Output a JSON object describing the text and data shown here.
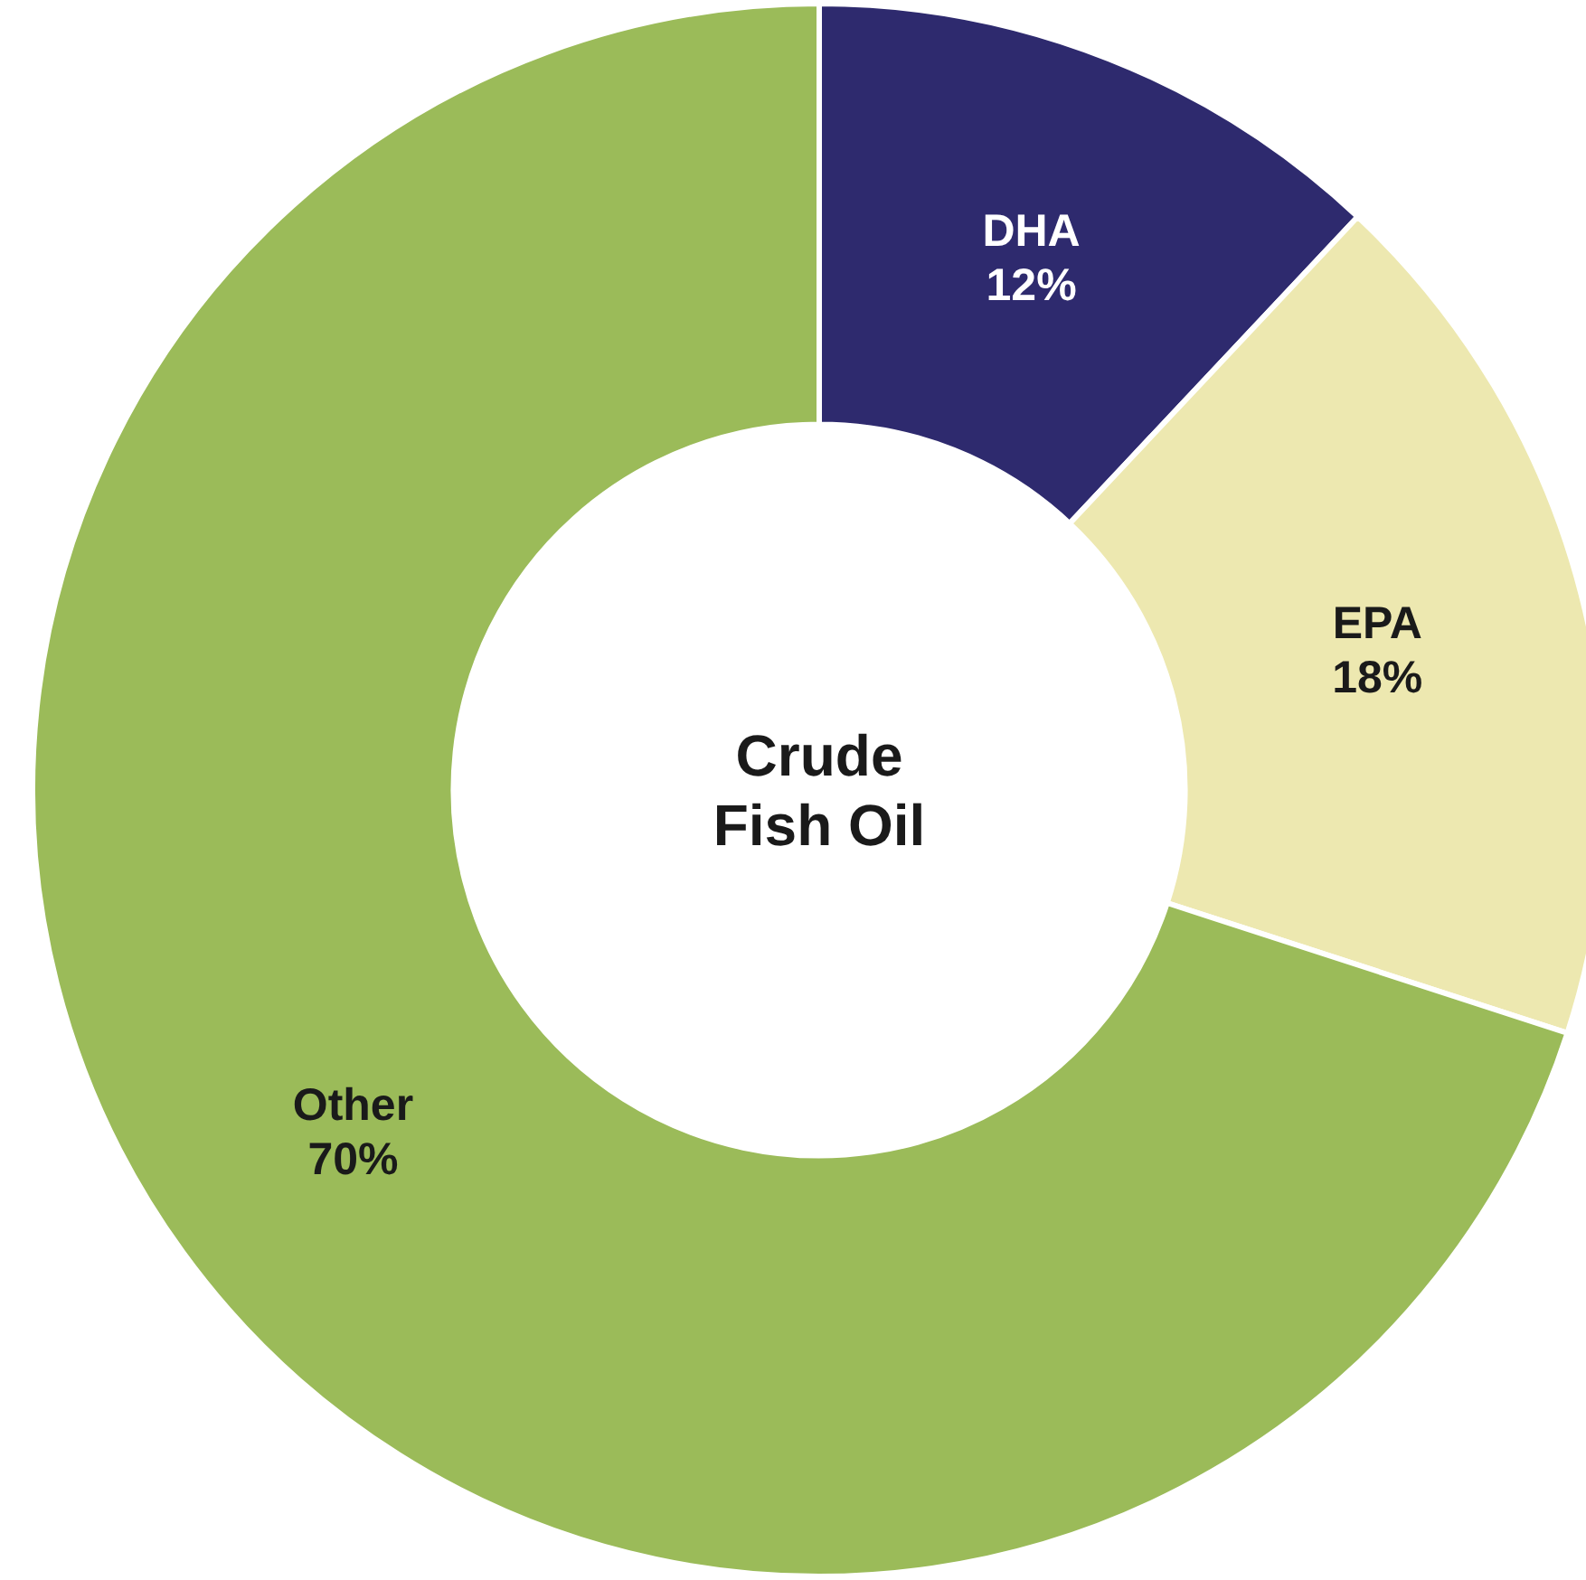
{
  "chart_data": {
    "type": "donut",
    "title": "Crude Fish Oil",
    "categories": [
      "DHA",
      "EPA",
      "Other"
    ],
    "values": [
      12,
      18,
      70
    ],
    "value_labels": [
      "12%",
      "18%",
      "70%"
    ],
    "colors": [
      "#2e2a6e",
      "#ede8b0",
      "#9bbb59"
    ]
  }
}
